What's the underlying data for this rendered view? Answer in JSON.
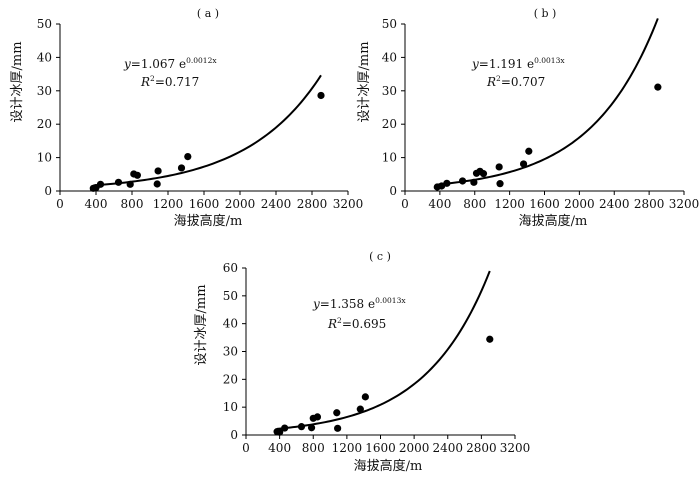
{
  "figure": {
    "background": "#ffffff",
    "line_color": "#000000",
    "point_color": "#000000"
  },
  "chart_data": [
    {
      "id": "a",
      "type": "scatter",
      "panel_label": "( a )",
      "xlabel": "海拔高度/m",
      "ylabel": "设计冰厚/mm",
      "xlim": [
        0,
        3200
      ],
      "ylim": [
        0,
        50
      ],
      "xticks": [
        0,
        400,
        800,
        1200,
        1600,
        2000,
        2400,
        2800,
        3200
      ],
      "yticks": [
        0,
        10,
        20,
        30,
        40,
        50
      ],
      "grid": false,
      "points": {
        "x": [
          370,
          400,
          450,
          650,
          780,
          820,
          860,
          1080,
          1090,
          1350,
          1420,
          2900
        ],
        "y": [
          0.8,
          1.0,
          2.0,
          2.6,
          2.0,
          5.1,
          4.7,
          2.1,
          6.0,
          6.9,
          10.3,
          28.6
        ]
      },
      "fit": {
        "a": 1.067,
        "b": 0.0012,
        "x_range": [
          370,
          2900
        ],
        "eq_y": "y",
        "eq_coef": "=1.067  e",
        "eq_exp": "0.0012x",
        "r2_label": "R",
        "r2_sup": "2",
        "r2_value": "=0.717"
      }
    },
    {
      "id": "b",
      "type": "scatter",
      "panel_label": "( b )",
      "xlabel": "海拔高度/m",
      "ylabel": "设计冰厚/mm",
      "xlim": [
        0,
        3200
      ],
      "ylim": [
        0,
        50
      ],
      "xticks": [
        0,
        400,
        800,
        1200,
        1600,
        2000,
        2400,
        2800,
        3200
      ],
      "yticks": [
        0,
        10,
        20,
        30,
        40,
        50
      ],
      "grid": false,
      "points": {
        "x": [
          370,
          420,
          480,
          660,
          790,
          820,
          860,
          900,
          1080,
          1090,
          1360,
          1420,
          2900
        ],
        "y": [
          1.2,
          1.5,
          2.3,
          3.0,
          2.6,
          5.3,
          5.9,
          5.2,
          7.2,
          2.2,
          8.1,
          11.9,
          31.1
        ]
      },
      "fit": {
        "a": 1.191,
        "b": 0.0013,
        "x_range": [
          370,
          2900
        ],
        "eq_y": "y",
        "eq_coef": "=1.191  e",
        "eq_exp": "0.0013x",
        "r2_label": "R",
        "r2_sup": "2",
        "r2_value": "=0.707"
      }
    },
    {
      "id": "c",
      "type": "scatter",
      "panel_label": "( c )",
      "xlabel": "海拔高度/m",
      "ylabel": "设计冰厚/mm",
      "xlim": [
        0,
        3200
      ],
      "ylim": [
        0,
        60
      ],
      "xticks": [
        0,
        400,
        800,
        1200,
        1600,
        2000,
        2400,
        2800,
        3200
      ],
      "yticks": [
        0,
        10,
        20,
        30,
        40,
        50,
        60
      ],
      "grid": false,
      "points": {
        "x": [
          370,
          400,
          460,
          660,
          780,
          800,
          850,
          1080,
          1090,
          1360,
          1420,
          2900
        ],
        "y": [
          1.2,
          1.0,
          2.5,
          3.0,
          2.6,
          6.0,
          6.5,
          8.0,
          2.4,
          9.3,
          13.7,
          34.4
        ]
      },
      "fit": {
        "a": 1.358,
        "b": 0.0013,
        "x_range": [
          370,
          2900
        ],
        "eq_y": "y",
        "eq_coef": "=1.358  e",
        "eq_exp": "0.0013x",
        "r2_label": "R",
        "r2_sup": "2",
        "r2_value": "=0.695"
      }
    }
  ]
}
